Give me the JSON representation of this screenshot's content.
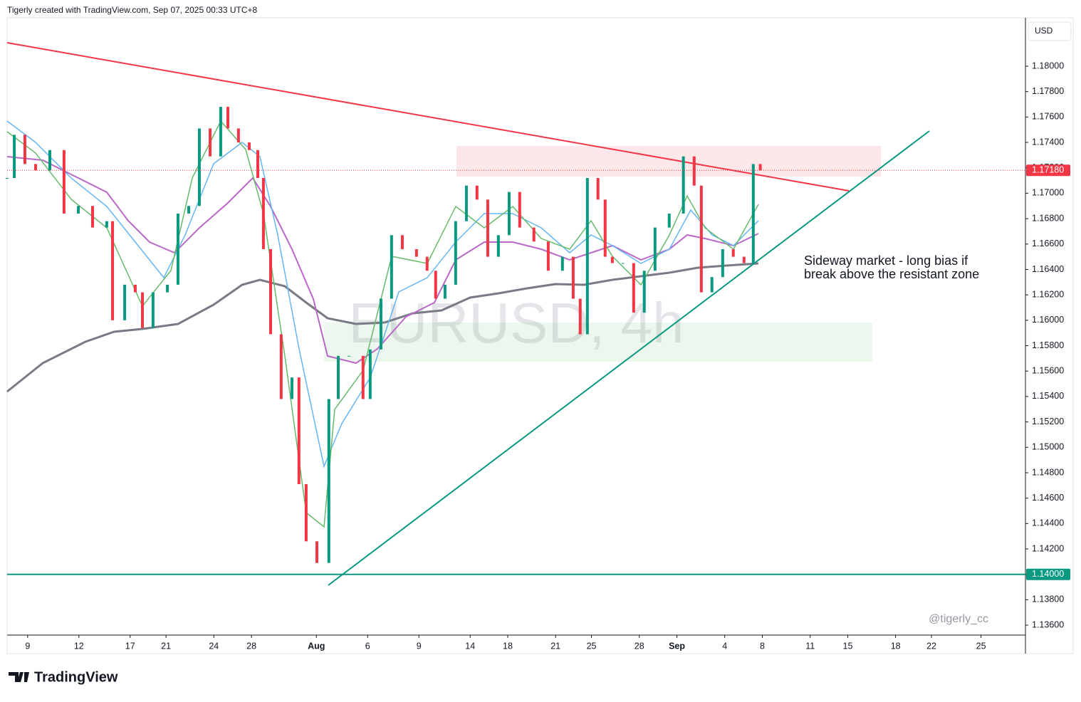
{
  "header": "Tigerly created with TradingView.com, Sep 07, 2025 00:33 UTC+8",
  "currency": "USD",
  "watermark": "EURUSD, 4h",
  "annotation": [
    "Sideway market - long bias if",
    "break above the resistant zone"
  ],
  "signature": "@tigerly_cc",
  "brand": "TradingView",
  "chart_data": {
    "type": "candlestick",
    "x": [
      0,
      0.42,
      1.04,
      1.67,
      2.5,
      3.33,
      4.17,
      5,
      5.83,
      6.17,
      6.88,
      7.5,
      7.92,
      8.54,
      9.38,
      10,
      10.63,
      11.25,
      11.88,
      12.5,
      12.92,
      13.54,
      14.17,
      14.67,
      15,
      15.42,
      16.04,
      16.67,
      17.08,
      17.5,
      18.13,
      18.83,
      19.38,
      20,
      20.83,
      21.25,
      21.88,
      22.5,
      23.13,
      23.96,
      24.58,
      25.08,
      25.63,
      26.25,
      26.88,
      27.5,
      28.13,
      28.75,
      29.38,
      30,
      30.83,
      31.67,
      32.5,
      33.13,
      33.54,
      33.96,
      34.58,
      35,
      35.42,
      36.04,
      36.67,
      37.29,
      37.92,
      38.75,
      39.58,
      40.21,
      40.63,
      41.25,
      41.88,
      42.5,
      43.13,
      43.67,
      44.08
    ],
    "values": [
      1.1712,
      1.1746,
      1.1723,
      1.1718,
      1.1734,
      1.1684,
      1.169,
      1.1673,
      1.1678,
      1.16,
      1.1628,
      1.1622,
      1.1594,
      1.1622,
      1.1628,
      1.1684,
      1.169,
      1.1751,
      1.1729,
      1.1768,
      1.1751,
      1.174,
      1.1734,
      1.1712,
      1.1656,
      1.1589,
      1.1538,
      1.1555,
      1.1471,
      1.1426,
      1.1409,
      1.1538,
      1.1572,
      1.1572,
      1.1538,
      1.1577,
      1.1617,
      1.1667,
      1.1656,
      1.165,
      1.1639,
      1.1617,
      1.1628,
      1.1678,
      1.1706,
      1.1695,
      1.165,
      1.1667,
      1.1701,
      1.1673,
      1.1662,
      1.1639,
      1.165,
      1.1617,
      1.1589,
      1.1712,
      1.1695,
      1.165,
      1.1645,
      1.1645,
      1.1606,
      1.1639,
      1.1673,
      1.1684,
      1.1729,
      1.1706,
      1.1622,
      1.1634,
      1.1656,
      1.165,
      1.1645,
      1.1723,
      1.1718
    ],
    "up_color": "#089981",
    "down_color": "#f23645",
    "xlim": [
      0,
      59.6
    ],
    "xticks": [
      {
        "value": 1.2,
        "label": "9"
      },
      {
        "value": 4.2,
        "label": "12"
      },
      {
        "value": 7.2,
        "label": "17"
      },
      {
        "value": 9.3,
        "label": "21"
      },
      {
        "value": 12.1,
        "label": "24"
      },
      {
        "value": 14.3,
        "label": "28"
      },
      {
        "value": 18.1,
        "label": "Aug"
      },
      {
        "value": 21.1,
        "label": "6"
      },
      {
        "value": 24.1,
        "label": "9"
      },
      {
        "value": 27.1,
        "label": "14"
      },
      {
        "value": 29.3,
        "label": "18"
      },
      {
        "value": 32.1,
        "label": "21"
      },
      {
        "value": 34.2,
        "label": "25"
      },
      {
        "value": 37,
        "label": "28"
      },
      {
        "value": 39.2,
        "label": "Sep"
      },
      {
        "value": 42,
        "label": "4"
      },
      {
        "value": 44.2,
        "label": "8"
      },
      {
        "value": 47,
        "label": "11"
      },
      {
        "value": 49.2,
        "label": "15"
      },
      {
        "value": 52,
        "label": "18"
      },
      {
        "value": 54.1,
        "label": "22"
      },
      {
        "value": 57,
        "label": "25"
      }
    ],
    "ylim": [
      1.13522,
      1.18381
    ],
    "yticks": [
      {
        "value": 1.136,
        "label": "1.13600"
      },
      {
        "value": 1.138,
        "label": "1.13800"
      },
      {
        "value": 1.14,
        "label": "1.14000"
      },
      {
        "value": 1.142,
        "label": "1.14200"
      },
      {
        "value": 1.144,
        "label": "1.14400"
      },
      {
        "value": 1.146,
        "label": "1.14600"
      },
      {
        "value": 1.148,
        "label": "1.14800"
      },
      {
        "value": 1.15,
        "label": "1.15000"
      },
      {
        "value": 1.152,
        "label": "1.15200"
      },
      {
        "value": 1.154,
        "label": "1.15400"
      },
      {
        "value": 1.156,
        "label": "1.15600"
      },
      {
        "value": 1.158,
        "label": "1.15800"
      },
      {
        "value": 1.16,
        "label": "1.16000"
      },
      {
        "value": 1.162,
        "label": "1.16200"
      },
      {
        "value": 1.164,
        "label": "1.16400"
      },
      {
        "value": 1.166,
        "label": "1.16600"
      },
      {
        "value": 1.168,
        "label": "1.16800"
      },
      {
        "value": 1.17,
        "label": "1.17000"
      },
      {
        "value": 1.172,
        "label": "1.17200"
      },
      {
        "value": 1.174,
        "label": "1.17400"
      },
      {
        "value": 1.176,
        "label": "1.17600"
      },
      {
        "value": 1.178,
        "label": "1.17800"
      },
      {
        "value": 1.18,
        "label": "1.18000"
      }
    ],
    "price_lines": [
      {
        "value": 1.1718,
        "label": "1.17180",
        "color": "#f23645"
      },
      {
        "value": 1.14,
        "label": "1.14000",
        "color": "#089981"
      }
    ]
  }
}
